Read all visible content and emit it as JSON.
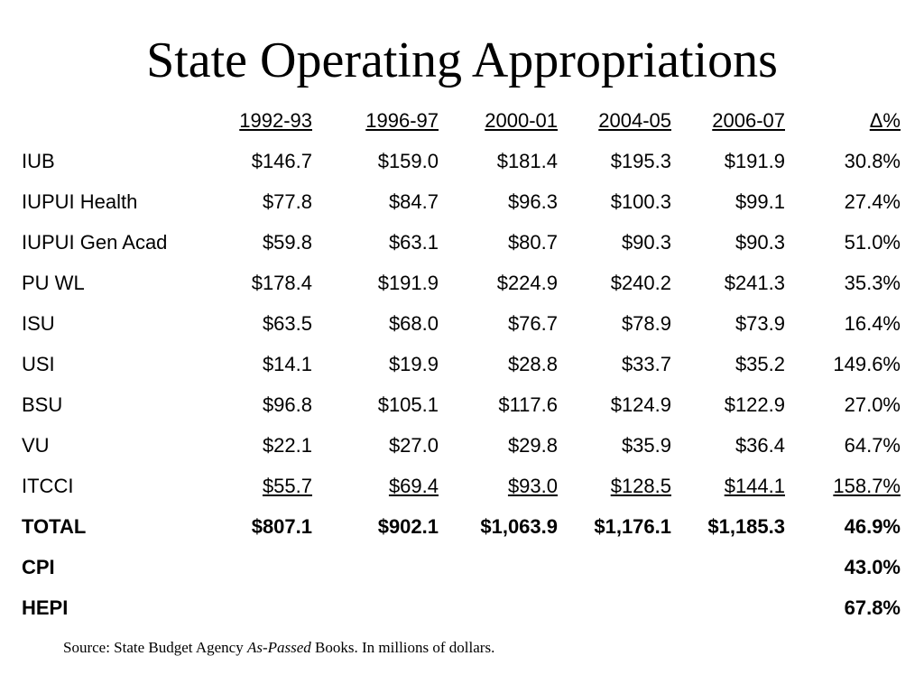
{
  "title": "State Operating Appropriations",
  "columns": [
    "1992-93",
    "1996-97",
    "2000-01",
    "2004-05",
    "2006-07",
    "Δ%"
  ],
  "rows": [
    {
      "name": "IUB",
      "values": [
        "$146.7",
        "$159.0",
        "$181.4",
        "$195.3",
        "$191.9",
        "30.8%"
      ]
    },
    {
      "name": "IUPUI Health",
      "values": [
        "$77.8",
        "$84.7",
        "$96.3",
        "$100.3",
        "$99.1",
        "27.4%"
      ]
    },
    {
      "name": "IUPUI Gen Acad",
      "values": [
        "$59.8",
        "$63.1",
        "$80.7",
        "$90.3",
        "$90.3",
        "51.0%"
      ]
    },
    {
      "name": "PU WL",
      "values": [
        "$178.4",
        "$191.9",
        "$224.9",
        "$240.2",
        "$241.3",
        "35.3%"
      ]
    },
    {
      "name": "ISU",
      "values": [
        "$63.5",
        "$68.0",
        "$76.7",
        "$78.9",
        "$73.9",
        "16.4%"
      ]
    },
    {
      "name": "USI",
      "values": [
        "$14.1",
        "$19.9",
        "$28.8",
        "$33.7",
        "$35.2",
        "149.6%"
      ]
    },
    {
      "name": "BSU",
      "values": [
        "$96.8",
        "$105.1",
        "$117.6",
        "$124.9",
        "$122.9",
        "27.0%"
      ]
    },
    {
      "name": "VU",
      "values": [
        "$22.1",
        "$27.0",
        "$29.8",
        "$35.9",
        "$36.4",
        "64.7%"
      ]
    },
    {
      "name": "ITCCI",
      "values": [
        "$55.7",
        "$69.4",
        "$93.0",
        "$128.5",
        "$144.1",
        "158.7%"
      ]
    },
    {
      "name": "TOTAL",
      "values": [
        "$807.1",
        "$902.1",
        "$1,063.9",
        "$1,176.1",
        "$1,185.3",
        "46.9%"
      ]
    },
    {
      "name": "CPI",
      "values": [
        "",
        "",
        "",
        "",
        "",
        "43.0%"
      ]
    },
    {
      "name": "HEPI",
      "values": [
        "",
        "",
        "",
        "",
        "",
        "67.8%"
      ]
    }
  ],
  "source": {
    "prefix": "Source: State Budget Agency ",
    "italic": "As-Passed",
    "suffix": " Books.  In millions of  dollars."
  }
}
